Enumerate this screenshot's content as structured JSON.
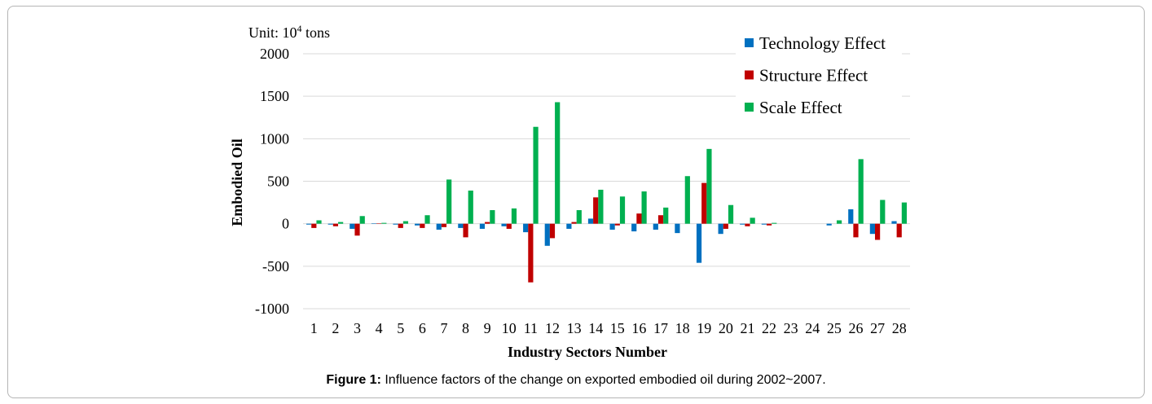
{
  "caption": {
    "label": "Figure 1:",
    "text": "Influence factors of the change on exported embodied oil during 2002~2007."
  },
  "chart_data": {
    "type": "bar",
    "title": "",
    "unit_label": "Unit: 10",
    "unit_exponent": "4",
    "unit_suffix": " tons",
    "xlabel": "Industry Sectors Number",
    "ylabel": "Embodied Oil",
    "ylim": [
      -1000,
      2000
    ],
    "yticks": [
      -1000,
      -500,
      0,
      500,
      1000,
      1500,
      2000
    ],
    "yticklabels": [
      "-1000",
      "-500",
      "0",
      "500",
      "1000",
      "1500",
      "2000"
    ],
    "grid": true,
    "legend_position": "top-right",
    "categories": [
      "1",
      "2",
      "3",
      "4",
      "5",
      "6",
      "7",
      "8",
      "9",
      "10",
      "11",
      "12",
      "13",
      "14",
      "15",
      "16",
      "17",
      "18",
      "19",
      "20",
      "21",
      "22",
      "23",
      "24",
      "25",
      "26",
      "27",
      "28"
    ],
    "series": [
      {
        "name": "Technology Effect",
        "color": "#0070C0",
        "values": [
          -10,
          -10,
          -60,
          5,
          -10,
          -20,
          -70,
          -50,
          -60,
          -30,
          -100,
          -260,
          -60,
          60,
          -70,
          -90,
          -70,
          -110,
          -460,
          -120,
          -10,
          -10,
          0,
          0,
          -20,
          170,
          -120,
          30
        ]
      },
      {
        "name": "Structure Effect",
        "color": "#C00000",
        "values": [
          -50,
          -30,
          -140,
          5,
          -50,
          -50,
          -40,
          -160,
          20,
          -60,
          -690,
          -170,
          20,
          310,
          -20,
          120,
          100,
          0,
          480,
          -60,
          -30,
          -20,
          0,
          0,
          0,
          -160,
          -190,
          -160
        ]
      },
      {
        "name": "Scale Effect",
        "color": "#00B050",
        "values": [
          40,
          20,
          90,
          10,
          30,
          100,
          520,
          390,
          160,
          180,
          1140,
          1430,
          160,
          400,
          320,
          380,
          190,
          560,
          880,
          220,
          70,
          10,
          0,
          0,
          40,
          760,
          280,
          250
        ]
      }
    ]
  }
}
